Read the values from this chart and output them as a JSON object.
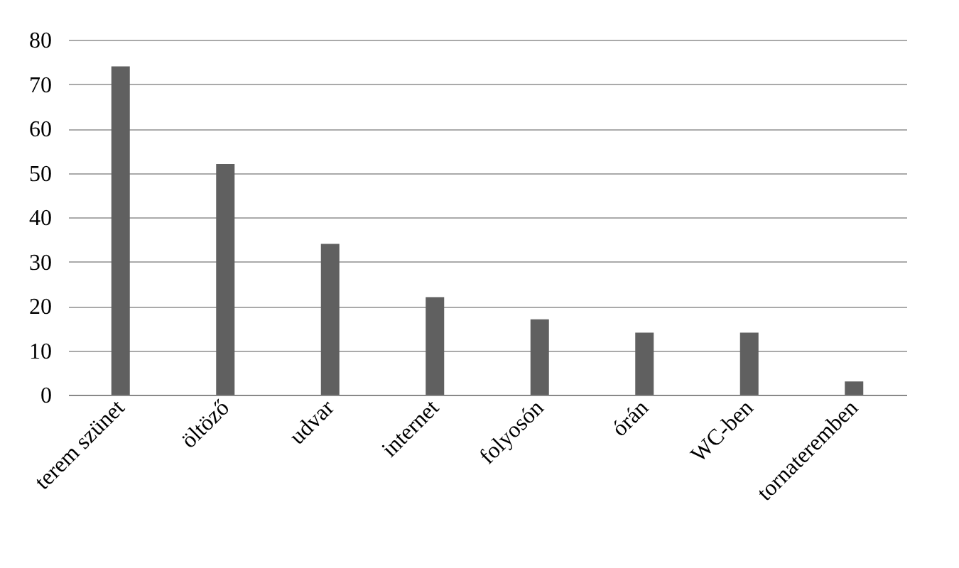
{
  "chart_data": {
    "type": "bar",
    "categories": [
      "terem szünet",
      "öltöző",
      "udvar",
      "internet",
      "folyosón",
      "órán",
      "WC-ben",
      "tornateremben"
    ],
    "values": [
      74,
      52,
      34,
      22,
      17,
      14,
      14,
      3
    ],
    "color": "#606060",
    "ylim": [
      0,
      80
    ],
    "yticks": [
      0,
      10,
      20,
      30,
      40,
      50,
      60,
      70,
      80
    ],
    "grid": "y"
  }
}
